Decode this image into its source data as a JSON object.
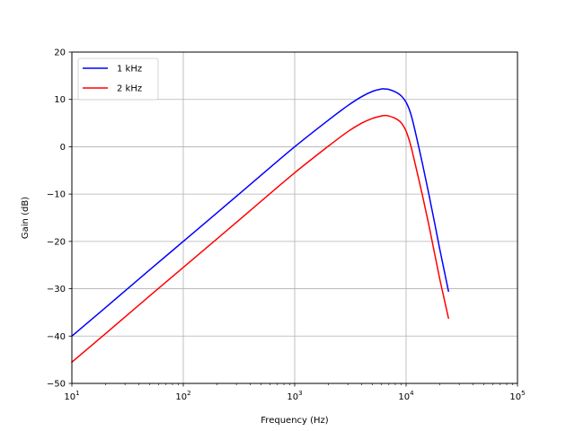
{
  "chart_data": {
    "type": "line",
    "xscale": "log",
    "xlabel": "Frequency (Hz)",
    "ylabel": "Gain (dB)",
    "xlim": [
      10,
      100000
    ],
    "ylim": [
      -50,
      20
    ],
    "grid": true,
    "legend_position": "upper-left",
    "x_tick_labels": [
      {
        "base": "10",
        "exp": "1"
      },
      {
        "base": "10",
        "exp": "2"
      },
      {
        "base": "10",
        "exp": "3"
      },
      {
        "base": "10",
        "exp": "4"
      },
      {
        "base": "10",
        "exp": "5"
      }
    ],
    "y_tick_labels": [
      "−50",
      "−40",
      "−30",
      "−20",
      "−10",
      "0",
      "10",
      "20"
    ],
    "series": [
      {
        "name": "1 kHz",
        "color": "#0000ff",
        "x": [
          10,
          20,
          50,
          100,
          200,
          500,
          1000,
          2000,
          3000,
          4000,
          5000,
          6000,
          6500,
          7000,
          8000,
          9000,
          10000,
          11000,
          12000,
          14000,
          16000,
          18000,
          20000,
          22000,
          24000
        ],
        "y": [
          -40,
          -34,
          -26,
          -20,
          -14,
          -6,
          0,
          5.6,
          8.7,
          10.6,
          11.7,
          12.2,
          12.2,
          12.1,
          11.6,
          10.8,
          9.4,
          7.0,
          3.5,
          -3.5,
          -10.0,
          -16.0,
          -21.5,
          -26.2,
          -30.5
        ]
      },
      {
        "name": "2 kHz",
        "color": "#ff0000",
        "x": [
          10,
          20,
          50,
          100,
          200,
          500,
          1000,
          2000,
          3000,
          4000,
          5000,
          6000,
          6500,
          7000,
          8000,
          9000,
          10000,
          11000,
          12000,
          14000,
          16000,
          18000,
          20000,
          22000,
          24000
        ],
        "y": [
          -45.5,
          -39.5,
          -31.5,
          -25.5,
          -19.5,
          -11.5,
          -5.5,
          0.1,
          3.2,
          5.0,
          6.0,
          6.5,
          6.6,
          6.5,
          6.0,
          5.1,
          3.3,
          0.3,
          -3.4,
          -10.2,
          -16.5,
          -22.5,
          -27.8,
          -32.2,
          -36.2
        ]
      }
    ]
  }
}
